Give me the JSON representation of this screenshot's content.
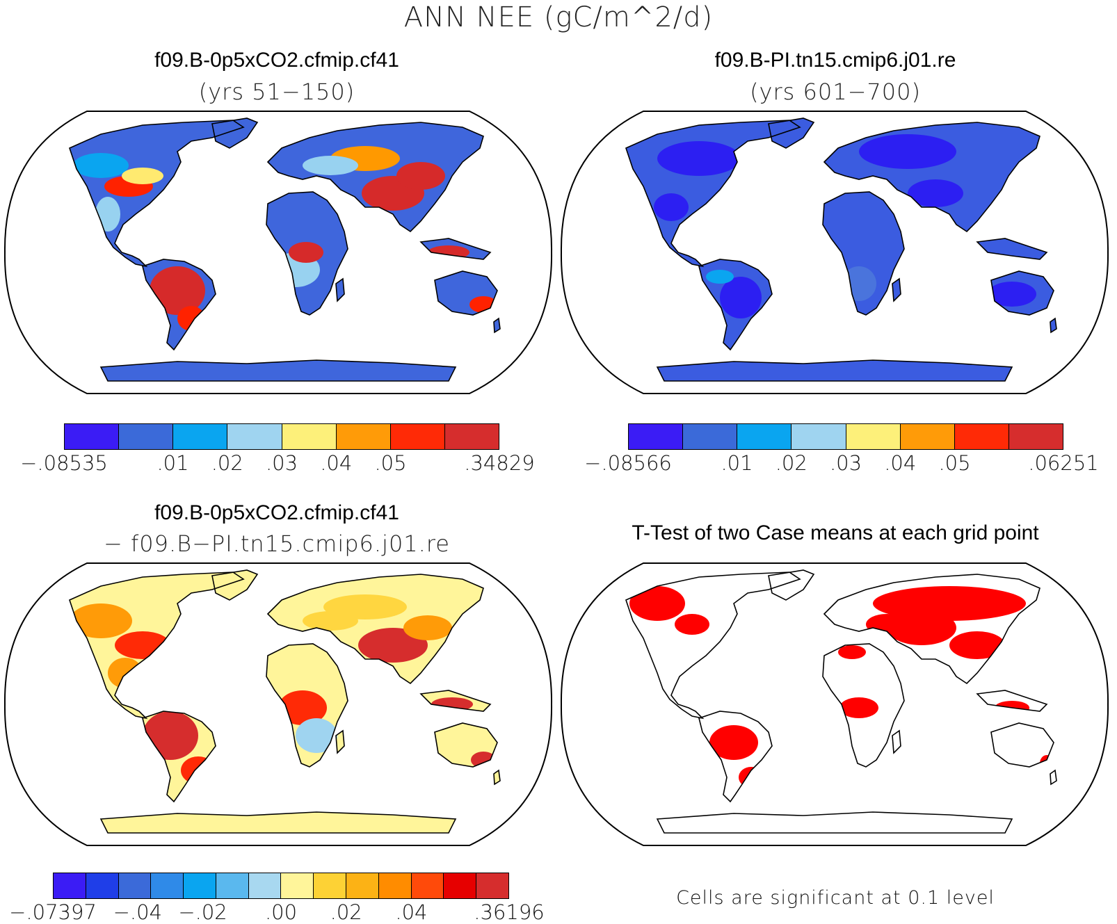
{
  "title": "ANN NEE (gC/m^2/d)",
  "panels": [
    {
      "id": "case1",
      "title": "f09.B-0p5xCO2.cfmip.cf41",
      "subtitle": "(yrs 51−150)",
      "land_color": "#3f66dc",
      "patch_colors": [
        "#2c1ff2",
        "#0aa5f0",
        "#98d2f0",
        "#ffea70",
        "#ff9900",
        "#ff2200",
        "#d62a2a"
      ],
      "colorbar": {
        "colors": [
          "#3b1cf5",
          "#3b6ad9",
          "#0aa5f0",
          "#9fd4f0",
          "#fdf07a",
          "#ff9b08",
          "#ff2a06",
          "#d62d2d"
        ],
        "labels": [
          "−.08535",
          ".01",
          ".02",
          ".03",
          ".04",
          ".05",
          ".34829"
        ]
      }
    },
    {
      "id": "case2",
      "title": "f09.B-PI.tn15.cmip6.j01.re",
      "subtitle": "(yrs 601−700)",
      "land_color": "#3b5ce0",
      "patch_colors": [
        "#2c1ff2",
        "#2c1ff2",
        "#4a74dc",
        "#0aa5f0"
      ],
      "colorbar": {
        "colors": [
          "#3b1cf5",
          "#3b6ad9",
          "#0aa5f0",
          "#9fd4f0",
          "#fdf07a",
          "#ff9b08",
          "#ff2a06",
          "#d62d2d"
        ],
        "labels": [
          "−.08566",
          ".01",
          ".02",
          ".03",
          ".04",
          ".05",
          ".06251"
        ]
      }
    },
    {
      "id": "diff",
      "title": "f09.B-0p5xCO2.cfmip.cf41",
      "subtitle": "− f09.B−PI.tn15.cmip6.j01.re",
      "land_color": "#fff59a",
      "patch_colors": [
        "#ffd640",
        "#ff9b08",
        "#ff2a06",
        "#d62d2d",
        "#9fd4f0",
        "#ffa020"
      ],
      "colorbar": {
        "colors": [
          "#3b1cf5",
          "#1f3ee8",
          "#3b6ad9",
          "#2f8ae8",
          "#0aa5f0",
          "#5ab8ee",
          "#a8d8f0",
          "#fff59a",
          "#fdd235",
          "#fcb215",
          "#ff8c00",
          "#ff4a0a",
          "#e60000",
          "#d62d2d"
        ],
        "labels": [
          "−.07397",
          "−.04",
          "−.02",
          ".00",
          ".02",
          ".04",
          ".36196"
        ]
      }
    },
    {
      "id": "ttest",
      "title": "T-Test of two Case means at each grid point",
      "subtitle": "",
      "land_color": "#ffffff",
      "patch_colors": [
        "#ff0000"
      ],
      "note": "Cells are significant at 0.1 level"
    }
  ]
}
